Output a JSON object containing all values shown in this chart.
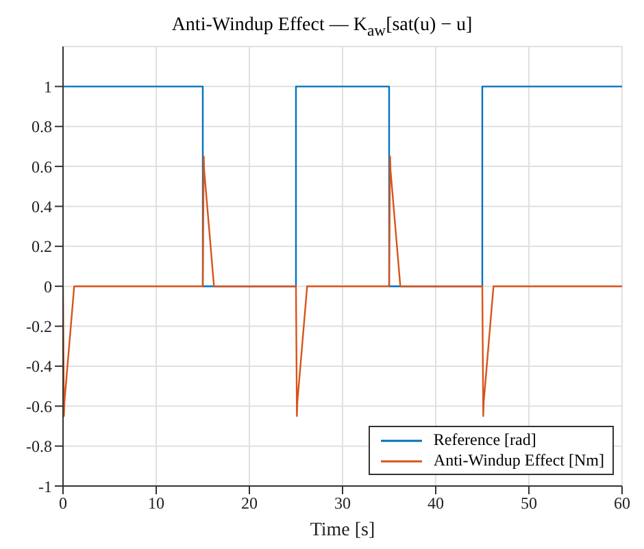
{
  "chart_data": {
    "type": "line",
    "title": "Anti-Windup Effect — K$_{aw}$[sat(u) − u]",
    "xlabel": "Time [s]",
    "xlim": [
      0,
      60
    ],
    "xticks": [
      0,
      10,
      20,
      30,
      40,
      50,
      60
    ],
    "ylim": [
      -1,
      1.2
    ],
    "yticks": [
      {
        "value": -1,
        "label": "-1"
      },
      {
        "value": -0.8,
        "label": "-0.8"
      },
      {
        "value": -0.6,
        "label": "-0.6"
      },
      {
        "value": -0.4,
        "label": "-0.4"
      },
      {
        "value": -0.2,
        "label": "-0.2"
      },
      {
        "value": 0,
        "label": "0"
      },
      {
        "value": 0.2,
        "label": "0.2"
      },
      {
        "value": 0.4,
        "label": "0.4"
      },
      {
        "value": 0.6,
        "label": "0.6"
      },
      {
        "value": 0.8,
        "label": "0.8"
      },
      {
        "value": 1,
        "label": "1"
      }
    ],
    "grid": true,
    "legend": "bottom right",
    "marker": "none",
    "line_style": "solid",
    "series": [
      {
        "name": "Reference [rad]",
        "type": "step",
        "color": "#0072bd",
        "x": [
          0,
          15,
          25,
          35,
          45,
          60
        ],
        "values": [
          1,
          0,
          1,
          0,
          1,
          1
        ]
      },
      {
        "name": "Anti-Windup Effect [Nm]",
        "type": "line",
        "color": "#d95319",
        "x": [
          0,
          0.1,
          0.15,
          1.2,
          15,
          15.1,
          15.15,
          16.2,
          25,
          25.1,
          25.15,
          26.2,
          35,
          35.1,
          35.15,
          36.2,
          45,
          45.1,
          45.15,
          46.2,
          60
        ],
        "values": [
          0,
          -0.65,
          -0.58,
          0,
          0,
          0.65,
          0.58,
          0,
          0,
          -0.65,
          -0.58,
          0,
          0,
          0.65,
          0.58,
          0,
          0,
          -0.65,
          -0.58,
          0,
          0
        ]
      }
    ]
  }
}
